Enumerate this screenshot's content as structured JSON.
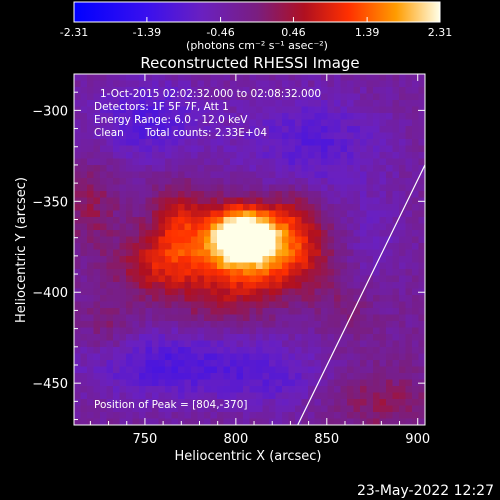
{
  "colorbar": {
    "ticks": [
      "-2.31",
      "-1.39",
      "-0.46",
      "0.46",
      "1.39",
      "2.31"
    ],
    "tick_values": [
      -2.31,
      -1.39,
      -0.46,
      0.46,
      1.39,
      2.31
    ],
    "range": [
      -2.31,
      2.31
    ],
    "unit_label": "(photons cm⁻² s⁻¹ asec⁻²)",
    "colormap": "red-temperature"
  },
  "chart_data": {
    "type": "heatmap",
    "title": "Reconstructed RHESSI Image",
    "xlabel": "Heliocentric X (arcsec)",
    "ylabel": "Heliocentric Y (arcsec)",
    "xlim": [
      711,
      904
    ],
    "ylim": [
      -473,
      -280
    ],
    "x_ticks": [
      750,
      800,
      850,
      900
    ],
    "y_ticks": [
      -300,
      -350,
      -400,
      -450
    ],
    "peak": {
      "x": 804,
      "y": -370
    },
    "blobs": [
      {
        "x": 804,
        "y": -368,
        "sx": 12,
        "sy": 10,
        "amp": 2.4
      },
      {
        "x": 796,
        "y": -378,
        "sx": 24,
        "sy": 16,
        "amp": 1.3
      },
      {
        "x": 826,
        "y": -380,
        "sx": 22,
        "sy": 14,
        "amp": 1.0
      },
      {
        "x": 768,
        "y": -360,
        "sx": 10,
        "sy": 14,
        "amp": 0.8
      },
      {
        "x": 832,
        "y": -358,
        "sx": 12,
        "sy": 12,
        "amp": 0.6
      },
      {
        "x": 756,
        "y": -386,
        "sx": 16,
        "sy": 12,
        "amp": 0.8
      },
      {
        "x": 792,
        "y": -408,
        "sx": 18,
        "sy": 10,
        "amp": 0.4
      },
      {
        "x": 720,
        "y": -352,
        "sx": 10,
        "sy": 16,
        "amp": 0.5
      },
      {
        "x": 730,
        "y": -420,
        "sx": 10,
        "sy": 12,
        "amp": 0.4
      },
      {
        "x": 880,
        "y": -460,
        "sx": 18,
        "sy": 12,
        "amp": 0.5
      },
      {
        "x": 862,
        "y": -410,
        "sx": 10,
        "sy": 10,
        "amp": 0.3
      },
      {
        "x": 752,
        "y": -305,
        "sx": 22,
        "sy": 16,
        "amp": -0.8
      },
      {
        "x": 842,
        "y": -318,
        "sx": 30,
        "sy": 20,
        "amp": -0.7
      },
      {
        "x": 762,
        "y": -440,
        "sx": 34,
        "sy": 14,
        "amp": -0.8
      },
      {
        "x": 872,
        "y": -372,
        "sx": 16,
        "sy": 18,
        "amp": -0.4
      },
      {
        "x": 820,
        "y": -446,
        "sx": 22,
        "sy": 14,
        "amp": -0.5
      }
    ],
    "limb_line": {
      "x": [
        834,
        904
      ],
      "y": [
        -473,
        -330
      ]
    },
    "annotations": {
      "time_range": "1-Oct-2015 02:02:32.000 to 02:08:32.000",
      "detectors": "Detectors: 1F 5F 7F, Att 1",
      "energy": "Energy Range: 6.0 - 12.0 keV",
      "method": "Clean",
      "counts": "Total counts: 2.33E+04",
      "peak_label": "Position of Peak = [804,-370]"
    }
  },
  "footer": {
    "date": "23-May-2022 12:27"
  }
}
